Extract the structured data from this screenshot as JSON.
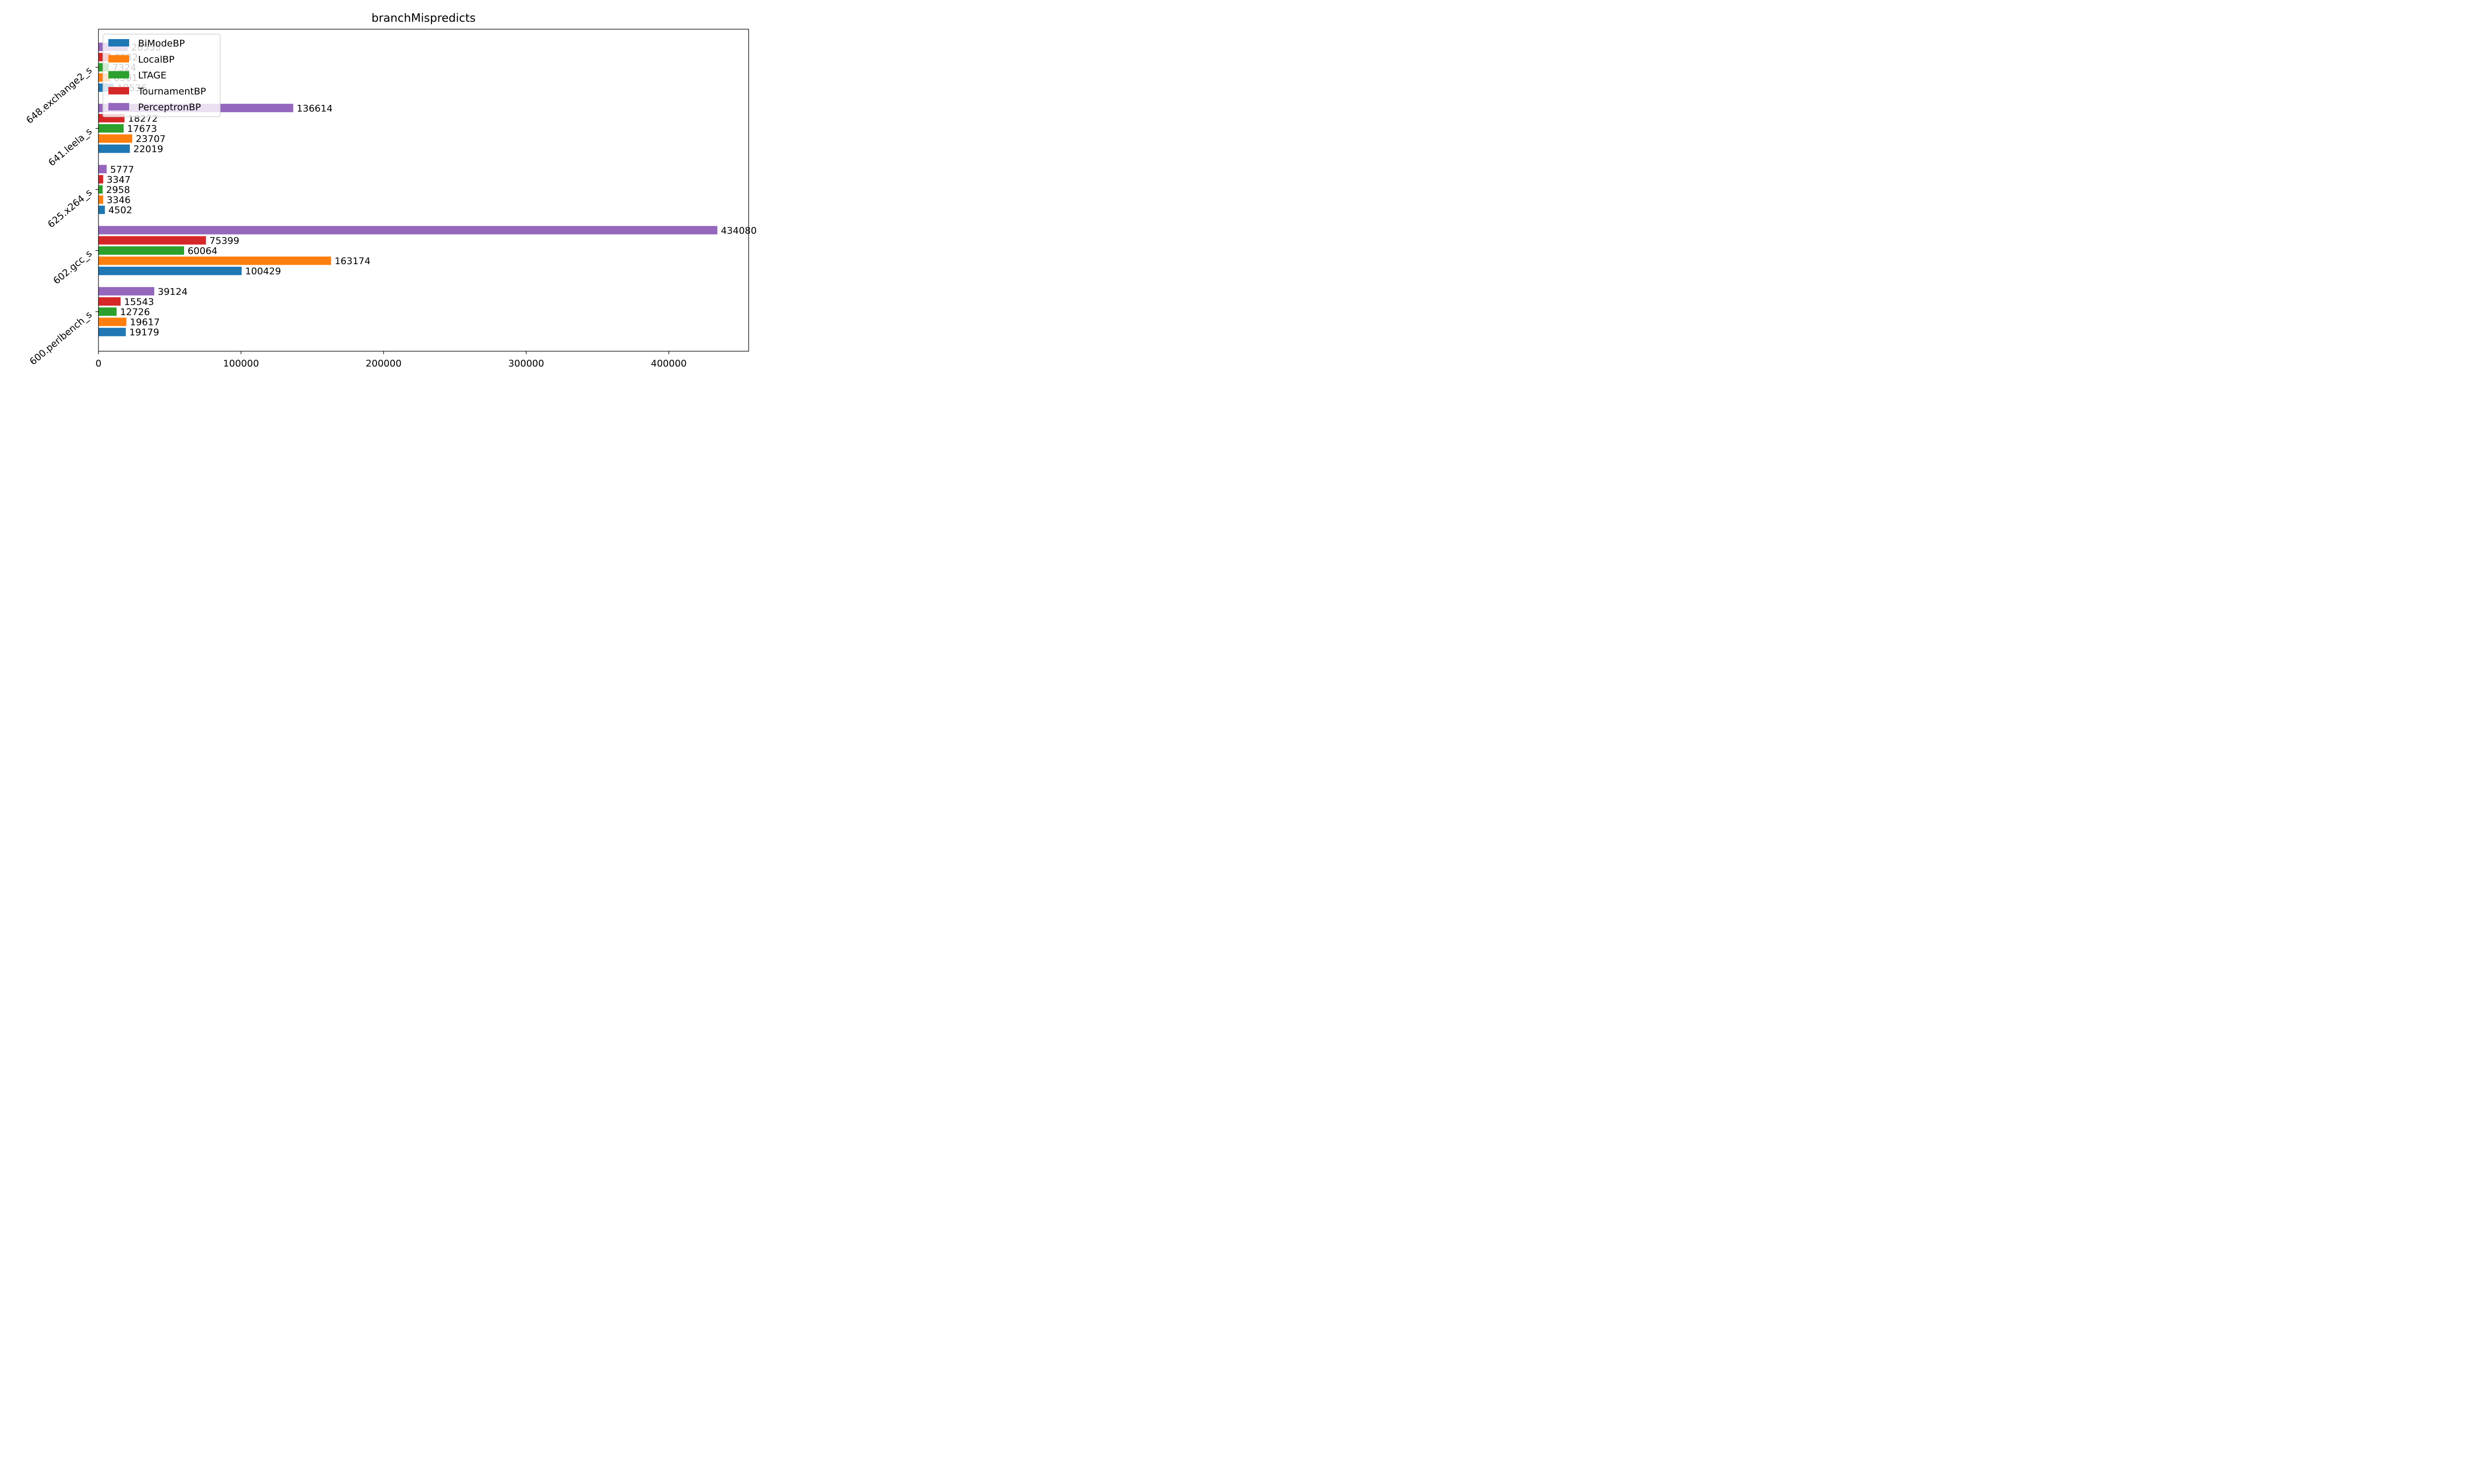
{
  "chart_data": {
    "type": "bar",
    "orientation": "horizontal",
    "title": "branchMispredicts",
    "xlabel": "",
    "ylabel": "",
    "categories": [
      "600.perlbench_s",
      "602.gcc_s",
      "625.x264_s",
      "641.leela_s",
      "648.exchange2_s"
    ],
    "xlim": [
      0,
      456000
    ],
    "x_ticks": [
      0,
      100000,
      200000,
      300000,
      400000
    ],
    "x_tick_labels": [
      "0",
      "100000",
      "200000",
      "300000",
      "400000"
    ],
    "grid": false,
    "legend_position": "upper-left",
    "series": [
      {
        "name": "BiModeBP",
        "color": "#1f77b4",
        "values": [
          19179,
          100429,
          4502,
          22019,
          10536
        ]
      },
      {
        "name": "LocalBP",
        "color": "#ff7f0e",
        "values": [
          19617,
          163174,
          3346,
          23707,
          8301
        ]
      },
      {
        "name": "LTAGE",
        "color": "#2ca02c",
        "values": [
          12726,
          60064,
          2958,
          17673,
          7324
        ]
      },
      {
        "name": "TournamentBP",
        "color": "#d62728",
        "values": [
          15543,
          75399,
          3347,
          18272,
          8532
        ]
      },
      {
        "name": "PerceptronBP",
        "color": "#9467bd",
        "values": [
          39124,
          434080,
          5777,
          136614,
          20555
        ]
      }
    ]
  }
}
